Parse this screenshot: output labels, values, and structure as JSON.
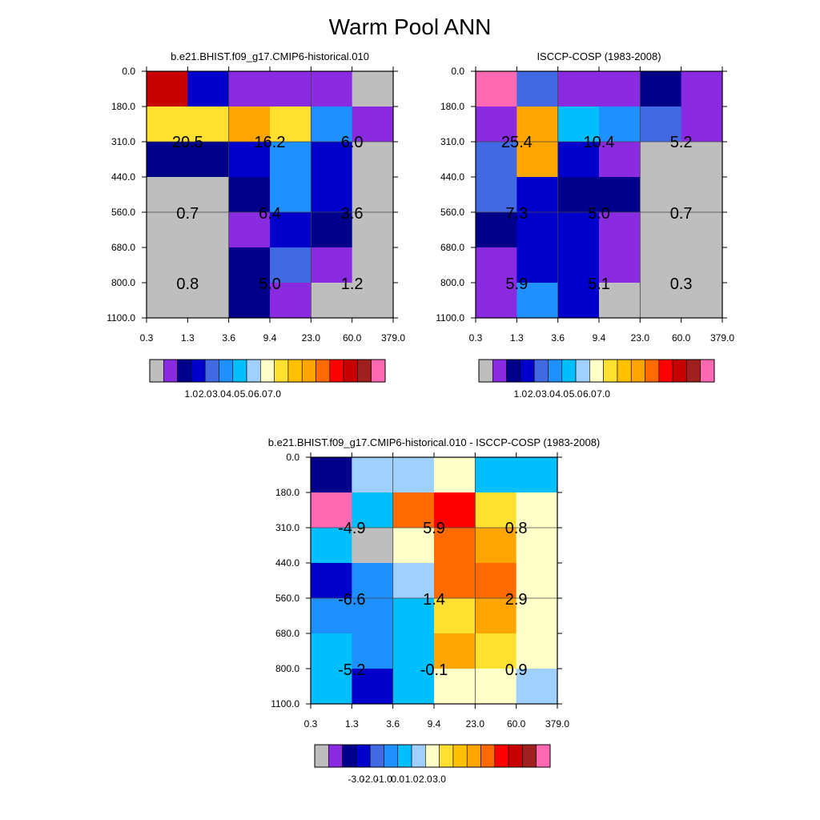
{
  "figure_title": "Warm Pool ANN",
  "chart_data": [
    {
      "type": "heatmap",
      "title": "b.e21.BHIST.f09_g17.CMIP6-historical.010",
      "x_tick_labels": [
        "0.3",
        "1.3",
        "3.6",
        "9.4",
        "23.0",
        "60.0",
        "379.0"
      ],
      "y_tick_labels": [
        "0.0",
        "180.0",
        "310.0",
        "440.0",
        "560.0",
        "680.0",
        "800.0",
        "1100.0"
      ],
      "cell_colors": [
        [
          "#c80000",
          "#0000cd",
          "#8a2be2",
          "#8a2be2",
          "#8a2be2",
          "#bebebe"
        ],
        [
          "#ffe030",
          "#ffe030",
          "#ffa500",
          "#ffe030",
          "#1e90ff",
          "#8a2be2"
        ],
        [
          "#00008b",
          "#00008b",
          "#0000cd",
          "#1e90ff",
          "#0000cd",
          "#bebebe"
        ],
        [
          "#bebebe",
          "#bebebe",
          "#00008b",
          "#1e90ff",
          "#0000cd",
          "#bebebe"
        ],
        [
          "#bebebe",
          "#bebebe",
          "#8a2be2",
          "#0000cd",
          "#00008b",
          "#bebebe"
        ],
        [
          "#bebebe",
          "#bebebe",
          "#00008b",
          "#4169e1",
          "#8a2be2",
          "#bebebe"
        ],
        [
          "#bebebe",
          "#bebebe",
          "#00008b",
          "#8a2be2",
          "#bebebe",
          "#bebebe"
        ]
      ],
      "block_values": [
        [
          "20.5",
          "16.2",
          "6.0"
        ],
        [
          "0.7",
          "6.4",
          "3.6"
        ],
        [
          "0.8",
          "5.0",
          "1.2"
        ]
      ],
      "colorbar": {
        "colors": [
          "#bebebe",
          "#8a2be2",
          "#00008b",
          "#0000cd",
          "#4169e1",
          "#1e90ff",
          "#00bfff",
          "#a0d0ff",
          "#ffffc8",
          "#ffe030",
          "#ffc000",
          "#ffa500",
          "#ff6a00",
          "#ff0000",
          "#c80000",
          "#a02020",
          "#ff69b4"
        ],
        "labels": [
          "1.0",
          "2.0",
          "3.0",
          "4.0",
          "5.0",
          "6.0",
          "7.0"
        ]
      }
    },
    {
      "type": "heatmap",
      "title": "ISCCP-COSP (1983-2008)",
      "x_tick_labels": [
        "0.3",
        "1.3",
        "3.6",
        "9.4",
        "23.0",
        "60.0",
        "379.0"
      ],
      "y_tick_labels": [
        "0.0",
        "180.0",
        "310.0",
        "440.0",
        "560.0",
        "680.0",
        "800.0",
        "1100.0"
      ],
      "cell_colors": [
        [
          "#ff69b4",
          "#4169e1",
          "#8a2be2",
          "#8a2be2",
          "#00008b",
          "#8a2be2"
        ],
        [
          "#8a2be2",
          "#ffa500",
          "#00bfff",
          "#1e90ff",
          "#4169e1",
          "#8a2be2"
        ],
        [
          "#4169e1",
          "#ffa500",
          "#0000cd",
          "#8a2be2",
          "#bebebe",
          "#bebebe"
        ],
        [
          "#4169e1",
          "#0000cd",
          "#00008b",
          "#00008b",
          "#bebebe",
          "#bebebe"
        ],
        [
          "#00008b",
          "#0000cd",
          "#0000cd",
          "#8a2be2",
          "#bebebe",
          "#bebebe"
        ],
        [
          "#8a2be2",
          "#0000cd",
          "#0000cd",
          "#8a2be2",
          "#bebebe",
          "#bebebe"
        ],
        [
          "#8a2be2",
          "#1e90ff",
          "#0000cd",
          "#bebebe",
          "#bebebe",
          "#bebebe"
        ]
      ],
      "block_values": [
        [
          "25.4",
          "10.4",
          "5.2"
        ],
        [
          "7.3",
          "5.0",
          "0.7"
        ],
        [
          "5.9",
          "5.1",
          "0.3"
        ]
      ],
      "colorbar": {
        "colors": [
          "#bebebe",
          "#8a2be2",
          "#00008b",
          "#0000cd",
          "#4169e1",
          "#1e90ff",
          "#00bfff",
          "#a0d0ff",
          "#ffffc8",
          "#ffe030",
          "#ffc000",
          "#ffa500",
          "#ff6a00",
          "#ff0000",
          "#c80000",
          "#a02020",
          "#ff69b4"
        ],
        "labels": [
          "1.0",
          "2.0",
          "3.0",
          "4.0",
          "5.0",
          "6.0",
          "7.0"
        ]
      }
    },
    {
      "type": "heatmap",
      "title": "b.e21.BHIST.f09_g17.CMIP6-historical.010 - ISCCP-COSP (1983-2008)",
      "x_tick_labels": [
        "0.3",
        "1.3",
        "3.6",
        "9.4",
        "23.0",
        "60.0",
        "379.0"
      ],
      "y_tick_labels": [
        "0.0",
        "180.0",
        "310.0",
        "440.0",
        "560.0",
        "680.0",
        "800.0",
        "1100.0"
      ],
      "cell_colors": [
        [
          "#00008b",
          "#a0d0ff",
          "#a0d0ff",
          "#ffffc8",
          "#00bfff",
          "#00bfff"
        ],
        [
          "#ff69b4",
          "#00bfff",
          "#ff6a00",
          "#ff0000",
          "#ffe030",
          "#ffffc8"
        ],
        [
          "#00bfff",
          "#bebebe",
          "#ffffc8",
          "#ff6a00",
          "#ffa500",
          "#ffffc8"
        ],
        [
          "#0000cd",
          "#1e90ff",
          "#a0d0ff",
          "#ff6a00",
          "#ff6a00",
          "#ffffc8"
        ],
        [
          "#1e90ff",
          "#1e90ff",
          "#00bfff",
          "#ffe030",
          "#ffa500",
          "#ffffc8"
        ],
        [
          "#00bfff",
          "#1e90ff",
          "#00bfff",
          "#ffa500",
          "#ffe030",
          "#ffffc8"
        ],
        [
          "#00bfff",
          "#0000cd",
          "#00bfff",
          "#ffffc8",
          "#ffffc8",
          "#a0d0ff"
        ]
      ],
      "block_values": [
        [
          "-4.9",
          "5.9",
          "0.8"
        ],
        [
          "-6.6",
          "1.4",
          "2.9"
        ],
        [
          "-5.2",
          "-0.1",
          "0.9"
        ]
      ],
      "colorbar": {
        "colors": [
          "#bebebe",
          "#8a2be2",
          "#00008b",
          "#0000cd",
          "#4169e1",
          "#1e90ff",
          "#00bfff",
          "#a0d0ff",
          "#ffffc8",
          "#ffe030",
          "#ffc000",
          "#ffa500",
          "#ff6a00",
          "#ff0000",
          "#c80000",
          "#a02020",
          "#ff69b4"
        ],
        "labels": [
          "-3.0",
          "-2.0",
          "-1.0",
          "0.0",
          "1.0",
          "2.0",
          "3.0"
        ]
      }
    }
  ]
}
